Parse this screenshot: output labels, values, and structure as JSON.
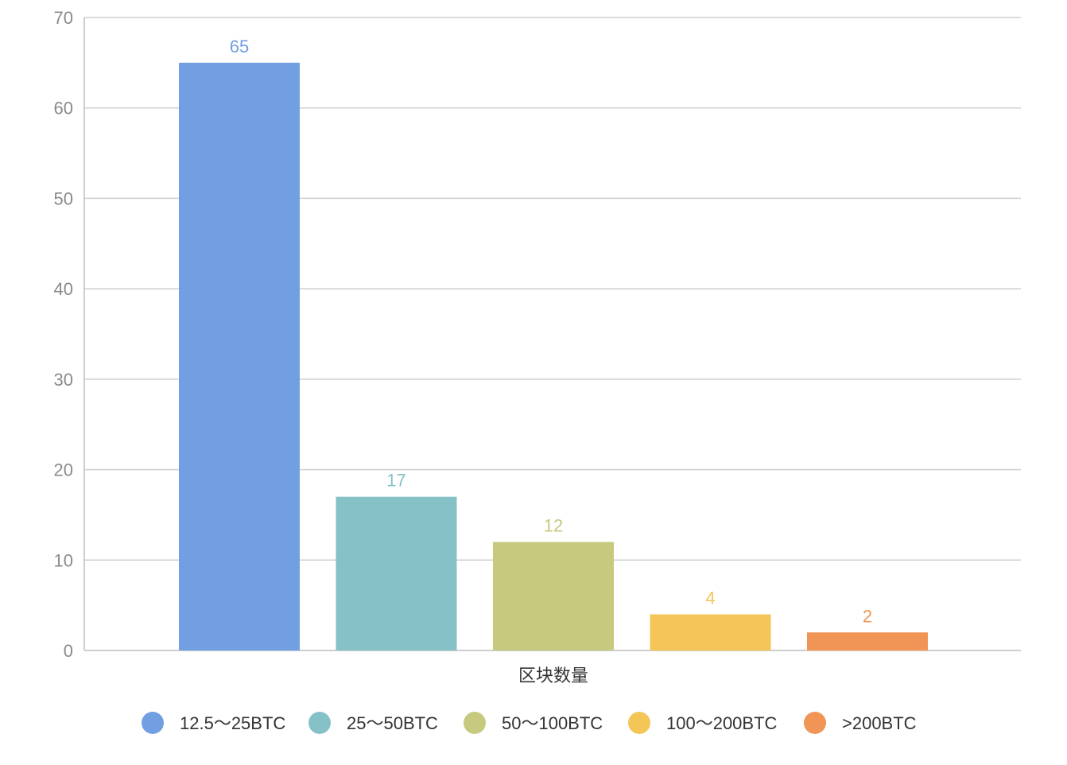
{
  "chart_data": {
    "type": "bar",
    "categories": [
      "区块数量"
    ],
    "series": [
      {
        "name": "12.5～25BTC",
        "values": [
          65
        ],
        "color": "#729ee2"
      },
      {
        "name": "25～50BTC",
        "values": [
          17
        ],
        "color": "#86c1c8"
      },
      {
        "name": "50～100BTC",
        "values": [
          12
        ],
        "color": "#c7c97e"
      },
      {
        "name": "100～200BTC",
        "values": [
          4
        ],
        "color": "#f3c657"
      },
      {
        "name": ">200BTC",
        "values": [
          2
        ],
        "color": "#f19557"
      }
    ],
    "ylim": [
      0,
      70
    ],
    "yticks": [
      0,
      10,
      20,
      30,
      40,
      50,
      60,
      70
    ],
    "grid": true,
    "legend": "bottom",
    "data_labels": true
  }
}
